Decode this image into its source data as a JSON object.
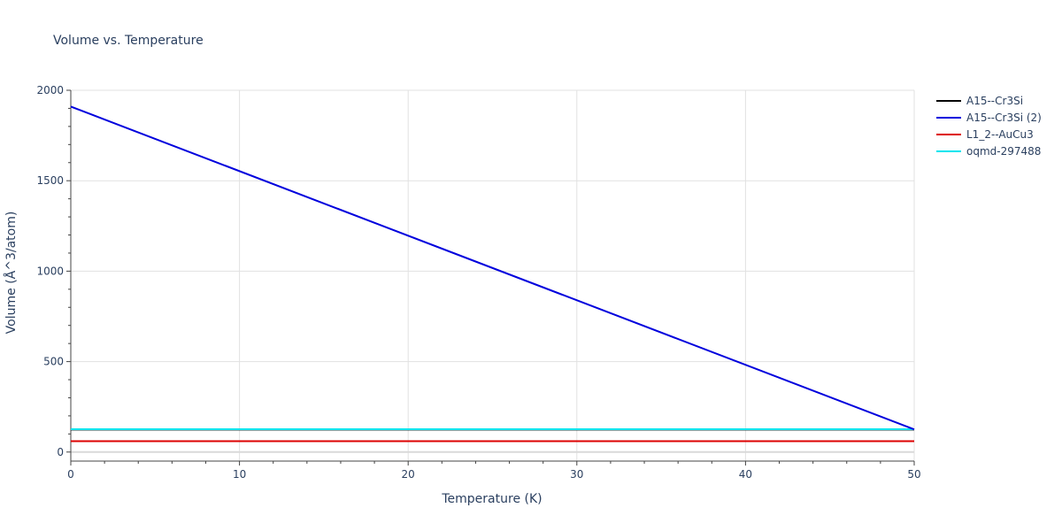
{
  "chart_data": {
    "type": "line",
    "title": "Volume vs. Temperature",
    "xlabel": "Temperature (K)",
    "ylabel": "Volume (Å^3/atom)",
    "xlim": [
      0,
      50
    ],
    "ylim": [
      -50,
      2000
    ],
    "xticks": [
      0,
      10,
      20,
      30,
      40,
      50
    ],
    "yticks": [
      0,
      500,
      1000,
      1500,
      2000
    ],
    "grid": true,
    "legend_position": "top-right",
    "series": [
      {
        "name": "A15--Cr3Si",
        "color": "#000000",
        "x": [
          0,
          50
        ],
        "values": [
          124,
          124
        ]
      },
      {
        "name": "A15--Cr3Si (2)",
        "color": "#0000dd",
        "x": [
          0,
          50
        ],
        "values": [
          1910,
          125
        ]
      },
      {
        "name": "L1_2--AuCu3",
        "color": "#dd0000",
        "x": [
          0,
          50
        ],
        "values": [
          60,
          60
        ]
      },
      {
        "name": "oqmd-297488",
        "color": "#00e5ee",
        "x": [
          0,
          50
        ],
        "values": [
          126,
          126
        ]
      }
    ]
  }
}
